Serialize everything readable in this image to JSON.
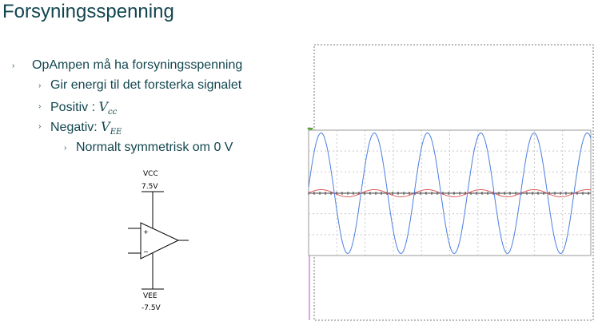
{
  "title": "Forsyningsspenning",
  "bullets": [
    {
      "text": "OpAmpen må ha forsyningsspenning",
      "level": 1
    },
    {
      "text": "Gir energi til det forsterka signalet",
      "level": 2
    },
    {
      "text": "Positiv : ",
      "math_base": "V",
      "math_sub": "cc",
      "level": 2
    },
    {
      "text": "Negativ: ",
      "math_base": "V",
      "math_sub": "EE",
      "level": 2
    },
    {
      "text": "Normalt symmetrisk om 0 V",
      "level": 3
    }
  ],
  "bullet_marker": "›",
  "circuit": {
    "vcc_label": "VCC",
    "vcc_value": "7.5V",
    "vee_label": "VEE",
    "vee_value": "-7.5V",
    "plus_sign": "+",
    "minus_sign": "−"
  },
  "scope": {
    "blue_color": "#4a7ee0",
    "red_color": "#e05a5a",
    "cycles": 5,
    "blue_amplitude": 1.0,
    "red_amplitude": 0.06
  }
}
